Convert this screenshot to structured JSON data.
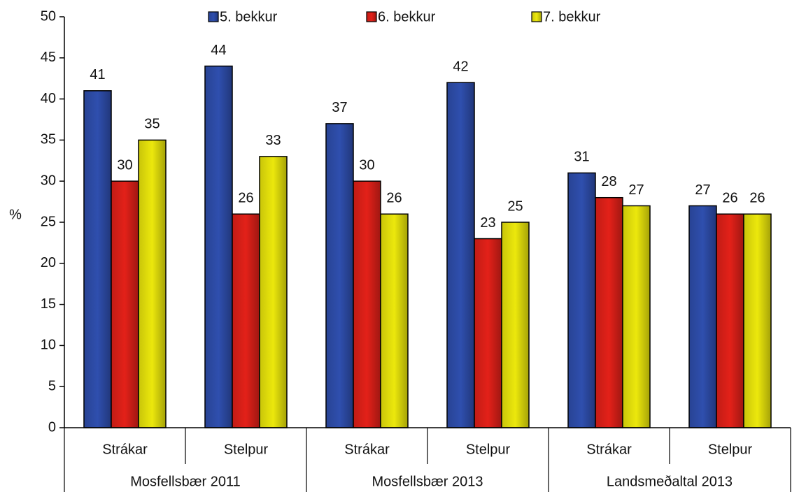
{
  "chart_data": {
    "type": "bar",
    "y_label": "%",
    "categories": [
      "Strákar",
      "Stelpur",
      "Strákar",
      "Stelpur",
      "Strákar",
      "Stelpur"
    ],
    "groups": [
      "Mosfellsbær 2011",
      "Mosfellsbær 2013",
      "Landsmeðaltal 2013"
    ],
    "series": [
      {
        "name": "5. bekkur",
        "color": "#2f4fae",
        "values": [
          41,
          44,
          37,
          42,
          31,
          27
        ]
      },
      {
        "name": "6. bekkur",
        "color": "#e32119",
        "values": [
          30,
          26,
          30,
          23,
          28,
          26
        ]
      },
      {
        "name": "7. bekkur",
        "color": "#ece80c",
        "values": [
          35,
          33,
          26,
          25,
          27,
          26
        ]
      }
    ],
    "ylim": [
      0,
      50
    ],
    "yticks": [
      0,
      5,
      10,
      15,
      20,
      25,
      30,
      35,
      40,
      45,
      50
    ],
    "legend": "top"
  }
}
